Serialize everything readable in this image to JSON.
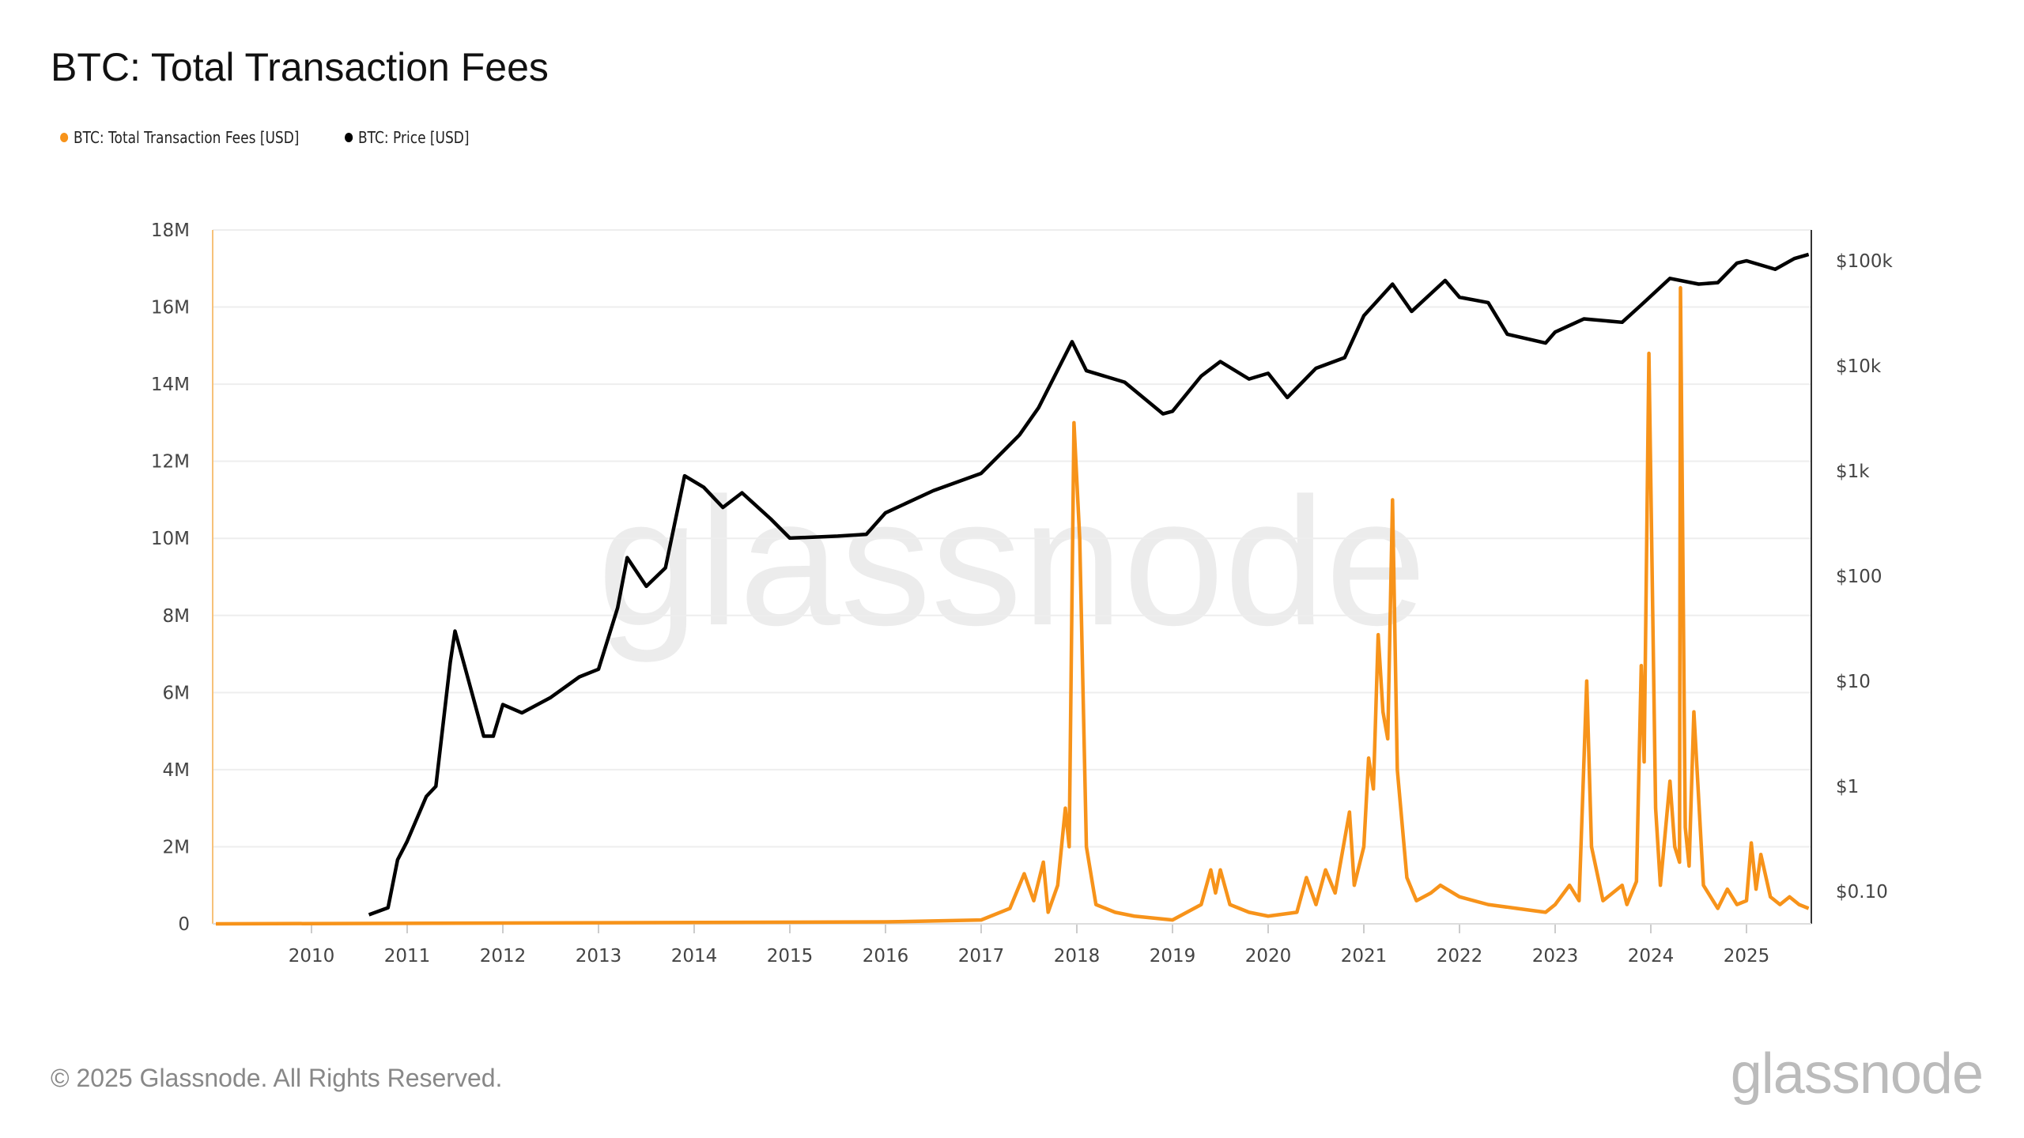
{
  "title": "BTC: Total Transaction Fees",
  "footer": "© 2025 Glassnode. All Rights Reserved.",
  "logo": "glassnode",
  "watermark": "glassnode",
  "colors": {
    "fees": "#f7931a",
    "price": "#000000",
    "grid": "#eeeeee"
  },
  "chart_data": {
    "type": "line",
    "title": "BTC: Total Transaction Fees",
    "legend_placement": "top-left",
    "grid": true,
    "x_ticks": [
      "2010",
      "2011",
      "2012",
      "2013",
      "2014",
      "2015",
      "2016",
      "2017",
      "2018",
      "2019",
      "2020",
      "2021",
      "2022",
      "2023",
      "2024",
      "2025"
    ],
    "xlim": [
      2009.0,
      2025.7
    ],
    "y_left": {
      "ticks": [
        "0",
        "2M",
        "4M",
        "6M",
        "8M",
        "10M",
        "12M",
        "14M",
        "16M",
        "18M"
      ],
      "range": [
        0,
        18000000
      ],
      "scale": "linear"
    },
    "y_right": {
      "ticks": [
        "$0.10",
        "$1",
        "$10",
        "$100",
        "$1k",
        "$10k",
        "$100k"
      ],
      "tick_values": [
        0.1,
        1,
        10,
        100,
        1000,
        10000,
        100000
      ],
      "scale": "log"
    },
    "series": [
      {
        "name": "BTC: Total Transaction Fees [USD]",
        "axis": "left",
        "color": "#f7931a",
        "x": [
          2009.0,
          2016.0,
          2017.0,
          2017.3,
          2017.45,
          2017.55,
          2017.65,
          2017.7,
          2017.8,
          2017.88,
          2017.92,
          2017.97,
          2018.03,
          2018.1,
          2018.2,
          2018.4,
          2018.6,
          2019.0,
          2019.3,
          2019.4,
          2019.45,
          2019.5,
          2019.6,
          2019.8,
          2020.0,
          2020.3,
          2020.4,
          2020.5,
          2020.6,
          2020.7,
          2020.85,
          2020.9,
          2021.0,
          2021.05,
          2021.1,
          2021.15,
          2021.2,
          2021.25,
          2021.3,
          2021.35,
          2021.45,
          2021.55,
          2021.7,
          2021.8,
          2022.0,
          2022.3,
          2022.6,
          2022.9,
          2023.0,
          2023.15,
          2023.25,
          2023.33,
          2023.38,
          2023.5,
          2023.7,
          2023.75,
          2023.85,
          2023.9,
          2023.93,
          2023.98,
          2024.05,
          2024.1,
          2024.2,
          2024.25,
          2024.3,
          2024.31,
          2024.36,
          2024.4,
          2024.45,
          2024.55,
          2024.7,
          2024.8,
          2024.9,
          2025.0,
          2025.05,
          2025.1,
          2025.15,
          2025.25,
          2025.35,
          2025.45,
          2025.55,
          2025.65
        ],
        "values": [
          0,
          50000,
          100000,
          400000,
          1300000,
          600000,
          1600000,
          300000,
          1000000,
          3000000,
          2000000,
          13000000,
          10000000,
          2000000,
          500000,
          300000,
          200000,
          100000,
          500000,
          1400000,
          800000,
          1400000,
          500000,
          300000,
          200000,
          300000,
          1200000,
          500000,
          1400000,
          800000,
          2900000,
          1000000,
          2000000,
          4300000,
          3500000,
          7500000,
          5500000,
          4800000,
          11000000,
          4000000,
          1200000,
          600000,
          800000,
          1000000,
          700000,
          500000,
          400000,
          300000,
          500000,
          1000000,
          600000,
          6300000,
          2000000,
          600000,
          1000000,
          500000,
          1100000,
          6700000,
          4200000,
          14800000,
          3000000,
          1000000,
          3700000,
          2000000,
          1600000,
          16500000,
          2500000,
          1500000,
          5500000,
          1000000,
          400000,
          900000,
          500000,
          600000,
          2100000,
          900000,
          1800000,
          700000,
          500000,
          700000,
          500000,
          400000
        ]
      },
      {
        "name": "BTC: Price [USD]",
        "axis": "right",
        "color": "#000000",
        "x": [
          2010.6,
          2010.8,
          2010.9,
          2011.0,
          2011.2,
          2011.3,
          2011.45,
          2011.5,
          2011.6,
          2011.8,
          2011.9,
          2012.0,
          2012.2,
          2012.5,
          2012.8,
          2013.0,
          2013.2,
          2013.3,
          2013.5,
          2013.7,
          2013.9,
          2014.1,
          2014.3,
          2014.5,
          2014.8,
          2015.0,
          2015.5,
          2015.8,
          2016.0,
          2016.5,
          2017.0,
          2017.4,
          2017.6,
          2017.95,
          2018.1,
          2018.5,
          2018.9,
          2019.0,
          2019.3,
          2019.5,
          2019.8,
          2020.0,
          2020.2,
          2020.5,
          2020.8,
          2021.0,
          2021.3,
          2021.5,
          2021.85,
          2022.0,
          2022.3,
          2022.5,
          2022.9,
          2023.0,
          2023.3,
          2023.7,
          2023.9,
          2024.2,
          2024.5,
          2024.7,
          2024.9,
          2025.0,
          2025.3,
          2025.5,
          2025.65
        ],
        "values": [
          0.06,
          0.07,
          0.2,
          0.3,
          0.8,
          1,
          15,
          30,
          14,
          3,
          3,
          6,
          5,
          7,
          11,
          13,
          50,
          150,
          80,
          120,
          900,
          700,
          450,
          620,
          350,
          230,
          240,
          250,
          400,
          650,
          950,
          2200,
          4000,
          17000,
          9000,
          7000,
          3500,
          3700,
          8000,
          11000,
          7500,
          8500,
          5000,
          9500,
          12000,
          30000,
          60000,
          33000,
          65000,
          45000,
          40000,
          20000,
          16500,
          21000,
          28000,
          26000,
          38000,
          68000,
          60000,
          62000,
          95000,
          100000,
          83000,
          105000,
          115000
        ]
      }
    ]
  }
}
